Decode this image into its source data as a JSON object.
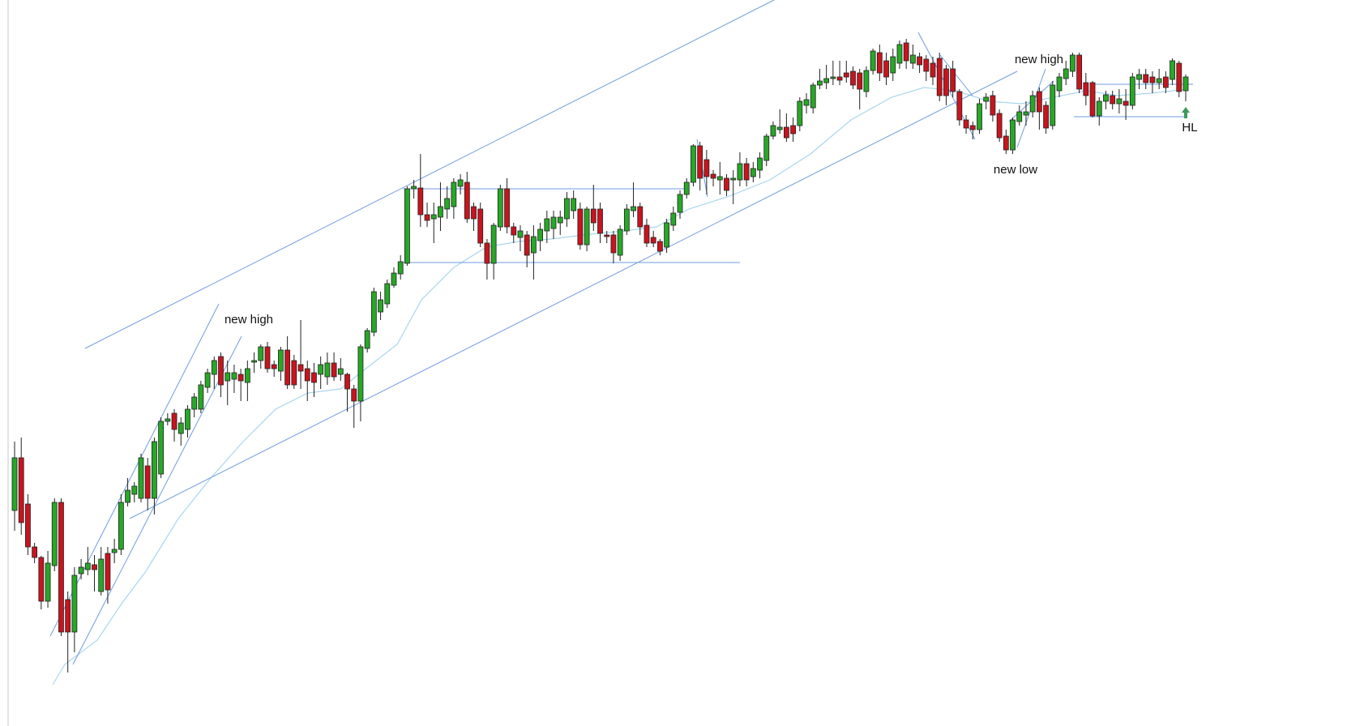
{
  "chart_data": {
    "type": "candlestick",
    "up_color": "#27a827",
    "down_color": "#c8141e",
    "ylim": [
      4,
      900
    ],
    "annotations": [
      "new high",
      "new high",
      "new low",
      "HL"
    ],
    "open": [
      270,
      335,
      278,
      225,
      212,
      158,
      202,
      280,
      160,
      120,
      192,
      197,
      203,
      170,
      217,
      218,
      222,
      280,
      290,
      285,
      325,
      285,
      315,
      380,
      390,
      365,
      370,
      395,
      395,
      422,
      438,
      460,
      430,
      432,
      438,
      428,
      453,
      455,
      472,
      450,
      442,
      468,
      455,
      450,
      445,
      440,
      438,
      435,
      452,
      438,
      438,
      420,
      405,
      470,
      490,
      515,
      525,
      548,
      562,
      575,
      667,
      668,
      635,
      630,
      632,
      642,
      645,
      670,
      675,
      645,
      642,
      600,
      575,
      620,
      667,
      620,
      607,
      610,
      588,
      603,
      615,
      618,
      625,
      630,
      640,
      642,
      598,
      642,
      642,
      610,
      610,
      585,
      615,
      640,
      645,
      622,
      607,
      602,
      595,
      622,
      638,
      660,
      675,
      720,
      703,
      685,
      678,
      680,
      678,
      678,
      698,
      682,
      690,
      702,
      732,
      740,
      743,
      745,
      745,
      770,
      767,
      795,
      798,
      803,
      805,
      810,
      812,
      810,
      787,
      813,
      835,
      825,
      810,
      822,
      847,
      822,
      830,
      827,
      822,
      828,
      815,
      815,
      787,
      752,
      745,
      740,
      775,
      782,
      760,
      732,
      715,
      750,
      758,
      762,
      787,
      770,
      745,
      788,
      803,
      812,
      832,
      798,
      798,
      757,
      775,
      782,
      772,
      775,
      770,
      802,
      808,
      805,
      798,
      805,
      802,
      822,
      788
    ],
    "high": [
      355,
      360,
      290,
      230,
      214,
      220,
      285,
      285,
      170,
      200,
      210,
      225,
      215,
      225,
      225,
      235,
      290,
      310,
      305,
      340,
      335,
      360,
      385,
      390,
      395,
      385,
      400,
      415,
      430,
      445,
      460,
      465,
      455,
      450,
      445,
      455,
      465,
      475,
      478,
      455,
      472,
      485,
      462,
      505,
      455,
      452,
      460,
      465,
      465,
      458,
      440,
      425,
      475,
      495,
      545,
      540,
      555,
      570,
      585,
      670,
      678,
      710,
      650,
      650,
      675,
      670,
      680,
      685,
      688,
      650,
      650,
      605,
      625,
      672,
      680,
      625,
      622,
      615,
      622,
      625,
      640,
      640,
      640,
      663,
      665,
      650,
      645,
      672,
      650,
      615,
      615,
      622,
      648,
      675,
      650,
      630,
      615,
      605,
      630,
      645,
      665,
      680,
      722,
      725,
      715,
      690,
      700,
      685,
      690,
      712,
      705,
      700,
      712,
      735,
      750,
      765,
      760,
      755,
      780,
      785,
      798,
      815,
      820,
      825,
      825,
      825,
      818,
      815,
      818,
      840,
      845,
      835,
      840,
      850,
      852,
      845,
      835,
      832,
      830,
      835,
      820,
      825,
      790,
      758,
      750,
      778,
      785,
      788,
      765,
      740,
      755,
      770,
      775,
      788,
      792,
      775,
      800,
      810,
      825,
      835,
      835,
      810,
      800,
      780,
      788,
      788,
      790,
      790,
      810,
      815,
      815,
      812,
      815,
      812,
      828,
      825,
      808
    ],
    "low": [
      245,
      240,
      215,
      205,
      148,
      150,
      195,
      115,
      70,
      95,
      185,
      190,
      170,
      165,
      155,
      205,
      215,
      275,
      280,
      280,
      270,
      265,
      310,
      375,
      355,
      350,
      360,
      385,
      390,
      415,
      420,
      410,
      400,
      415,
      405,
      405,
      440,
      445,
      440,
      435,
      430,
      420,
      420,
      420,
      405,
      410,
      420,
      425,
      430,
      430,
      392,
      372,
      380,
      465,
      485,
      505,
      520,
      545,
      555,
      572,
      655,
      620,
      620,
      600,
      615,
      630,
      630,
      660,
      625,
      615,
      595,
      555,
      555,
      615,
      612,
      600,
      590,
      570,
      555,
      590,
      600,
      605,
      610,
      620,
      630,
      592,
      590,
      615,
      600,
      600,
      575,
      578,
      610,
      632,
      610,
      595,
      595,
      585,
      588,
      615,
      630,
      655,
      670,
      665,
      660,
      670,
      660,
      658,
      648,
      670,
      670,
      675,
      680,
      695,
      728,
      735,
      725,
      725,
      738,
      760,
      760,
      790,
      790,
      795,
      795,
      798,
      790,
      765,
      780,
      808,
      800,
      795,
      800,
      815,
      815,
      815,
      810,
      800,
      795,
      775,
      770,
      780,
      745,
      735,
      728,
      735,
      765,
      750,
      725,
      710,
      710,
      745,
      745,
      755,
      740,
      735,
      740,
      780,
      795,
      805,
      785,
      770,
      755,
      745,
      765,
      765,
      760,
      752,
      765,
      790,
      790,
      785,
      790,
      785,
      795,
      780,
      775
    ],
    "close": [
      335,
      255,
      225,
      212,
      158,
      205,
      280,
      120,
      120,
      190,
      200,
      205,
      197,
      210,
      172,
      222,
      280,
      295,
      300,
      335,
      285,
      355,
      380,
      383,
      370,
      378,
      395,
      410,
      425,
      440,
      455,
      425,
      440,
      440,
      430,
      445,
      455,
      472,
      445,
      445,
      468,
      425,
      425,
      442,
      430,
      428,
      450,
      452,
      435,
      445,
      420,
      405,
      472,
      492,
      540,
      530,
      550,
      563,
      577,
      667,
      670,
      635,
      628,
      635,
      645,
      655,
      675,
      678,
      630,
      630,
      600,
      575,
      622,
      667,
      620,
      610,
      615,
      585,
      608,
      617,
      630,
      632,
      632,
      655,
      655,
      598,
      642,
      625,
      612,
      608,
      588,
      617,
      642,
      645,
      620,
      600,
      600,
      590,
      625,
      637,
      660,
      675,
      720,
      680,
      682,
      680,
      682,
      665,
      680,
      698,
      678,
      692,
      705,
      732,
      745,
      743,
      730,
      735,
      775,
      777,
      795,
      800,
      803,
      805,
      801,
      805,
      795,
      790,
      813,
      837,
      810,
      805,
      830,
      845,
      825,
      832,
      820,
      812,
      805,
      782,
      782,
      787,
      752,
      742,
      740,
      772,
      780,
      758,
      730,
      715,
      752,
      762,
      762,
      782,
      762,
      742,
      795,
      805,
      815,
      832,
      790,
      782,
      757,
      775,
      783,
      772,
      778,
      770,
      805,
      808,
      798,
      798,
      803,
      792,
      825,
      787,
      805
    ]
  }
}
